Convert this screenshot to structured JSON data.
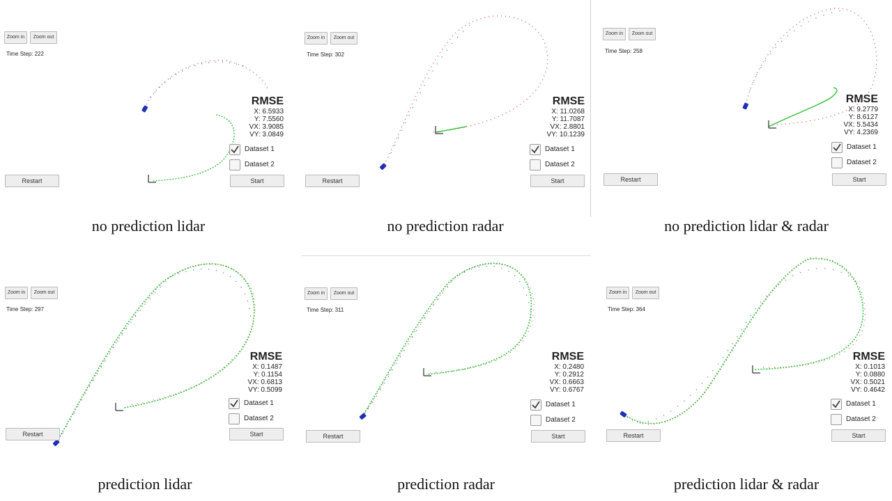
{
  "panels": [
    {
      "caption": "no prediction lidar",
      "zoom_in": "Zoom in",
      "zoom_out": "Zoom out",
      "time_step": "Time Step: 222",
      "rmse_title": "RMSE",
      "rmse_x": "X: 6.5933",
      "rmse_y": "Y: 7.5560",
      "rmse_vx": "VX: 3.9085",
      "rmse_vy": "VY: 3.0849",
      "dataset1": "Dataset 1",
      "dataset2": "Dataset 2",
      "dataset1_checked": true,
      "dataset2_checked": false,
      "restart": "Restart",
      "start": "Start"
    },
    {
      "caption": "no prediction radar",
      "zoom_in": "Zoom in",
      "zoom_out": "Zoom out",
      "time_step": "Time Step: 302",
      "rmse_title": "RMSE",
      "rmse_x": "X: 11.0268",
      "rmse_y": "Y: 11.7087",
      "rmse_vx": "VX: 2.8801",
      "rmse_vy": "VY: 10.1239",
      "dataset1": "Dataset 1",
      "dataset2": "Dataset 2",
      "dataset1_checked": true,
      "dataset2_checked": false,
      "restart": "Restart",
      "start": "Start"
    },
    {
      "caption": "no prediction lidar & radar",
      "zoom_in": "Zoom in",
      "zoom_out": "Zoom out",
      "time_step": "Time Step: 258",
      "rmse_title": "RMSE",
      "rmse_x": "X: 9.2779",
      "rmse_y": "Y: 8.6127",
      "rmse_vx": "VX: 5.5434",
      "rmse_vy": "VY: 4.2369",
      "dataset1": "Dataset 1",
      "dataset2": "Dataset 2",
      "dataset1_checked": true,
      "dataset2_checked": false,
      "restart": "Restart",
      "start": "Start"
    },
    {
      "caption": "prediction lidar",
      "zoom_in": "Zoom in",
      "zoom_out": "Zoom out",
      "time_step": "Time Step: 297",
      "rmse_title": "RMSE",
      "rmse_x": "X: 0.1487",
      "rmse_y": "Y: 0.1154",
      "rmse_vx": "VX: 0.6813",
      "rmse_vy": "VY: 0.5099",
      "dataset1": "Dataset 1",
      "dataset2": "Dataset 2",
      "dataset1_checked": true,
      "dataset2_checked": false,
      "restart": "Restart",
      "start": "Start"
    },
    {
      "caption": "prediction radar",
      "zoom_in": "Zoom in",
      "zoom_out": "Zoom out",
      "time_step": "Time Step: 311",
      "rmse_title": "RMSE",
      "rmse_x": "X: 0.2480",
      "rmse_y": "Y: 0.2912",
      "rmse_vx": "VX: 0.6663",
      "rmse_vy": "VY: 0.6767",
      "dataset1": "Dataset 1",
      "dataset2": "Dataset 2",
      "dataset1_checked": true,
      "dataset2_checked": false,
      "restart": "Restart",
      "start": "Start"
    },
    {
      "caption": "prediction lidar & radar",
      "zoom_in": "Zoom in",
      "zoom_out": "Zoom out",
      "time_step": "Time Step: 364",
      "rmse_title": "RMSE",
      "rmse_x": "X: 0.1013",
      "rmse_y": "Y: 0.0880",
      "rmse_vx": "VX: 0.5021",
      "rmse_vy": "VY: 0.4642",
      "dataset1": "Dataset 1",
      "dataset2": "Dataset 2",
      "dataset1_checked": true,
      "dataset2_checked": false,
      "restart": "Restart",
      "start": "Start"
    }
  ],
  "colors": {
    "measurement_red": "#d9534f",
    "measurement_blue": "#3b4bd8",
    "estimate_green": "#2fbf3a",
    "car_blue": "#1f2fb8"
  },
  "icons": [
    "checkmark-icon",
    "car-icon",
    "sensor-axes-icon"
  ]
}
